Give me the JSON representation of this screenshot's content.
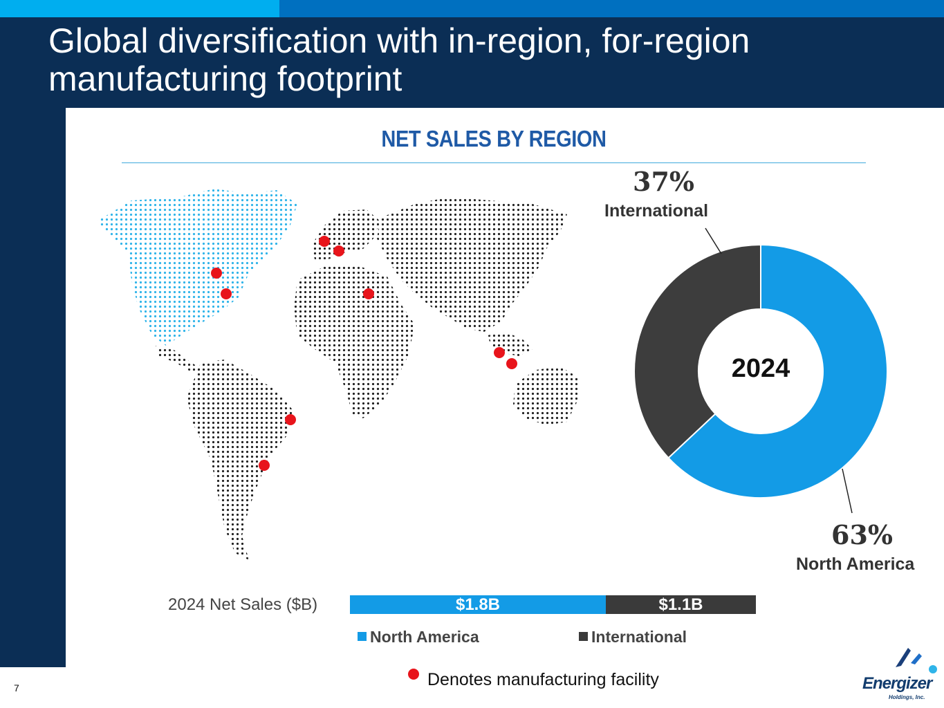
{
  "slide": {
    "title_line1": "Global diversification with in-region, for-region",
    "title_line2": "manufacturing footprint",
    "page_number": "7"
  },
  "section": {
    "title": "NET SALES BY REGION"
  },
  "chart_data": [
    {
      "type": "pie",
      "subtype": "donut",
      "center_label": "2024",
      "slices": [
        {
          "name": "North America",
          "value": 63,
          "label": "63%",
          "color": "#139be6"
        },
        {
          "name": "International",
          "value": 37,
          "label": "37%",
          "color": "#3d3d3d"
        }
      ]
    },
    {
      "type": "bar",
      "orientation": "horizontal",
      "stacked": true,
      "category": "2024 Net Sales ($B)",
      "series": [
        {
          "name": "North America",
          "value": 1.8,
          "label": "$1.8B",
          "color": "#139be6"
        },
        {
          "name": "International",
          "value": 1.1,
          "label": "$1.1B",
          "color": "#3a3a3a"
        }
      ],
      "legend": [
        "North America",
        "International"
      ]
    }
  ],
  "legend_note": {
    "text": "Denotes manufacturing facility",
    "color": "#e8141b"
  },
  "logo": {
    "name": "Energizer",
    "sub": "Holdings, Inc."
  },
  "colors": {
    "header": "#0b2e55",
    "accent_light": "#00aeef",
    "accent": "#0070c0",
    "title_blue": "#1f5aa6"
  }
}
